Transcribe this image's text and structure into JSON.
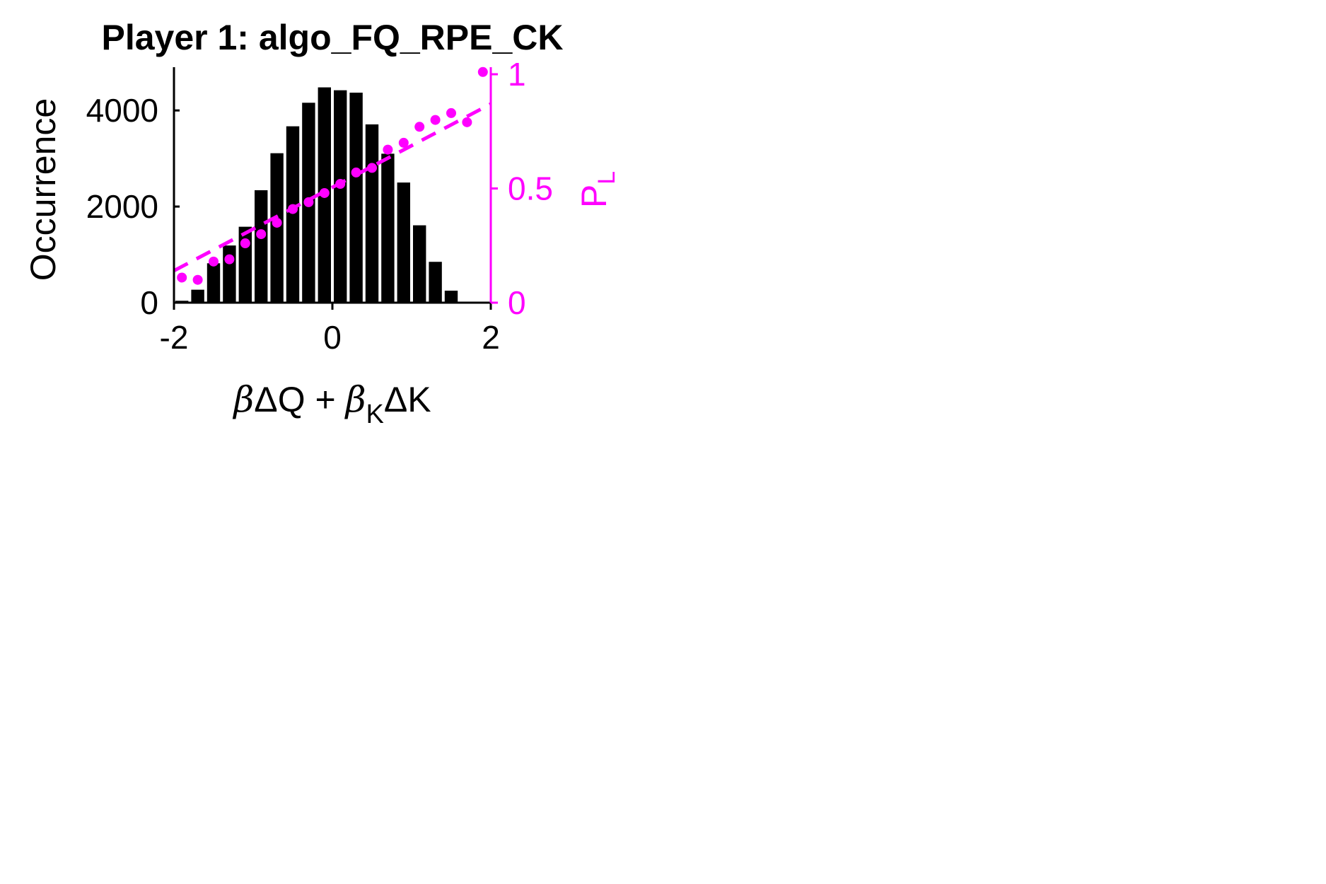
{
  "chart_data": {
    "type": "bar",
    "title": "Player 1: algo_FQ_RPE_CK",
    "xlabel": {
      "beta": "β",
      "part1": "ΔQ + ",
      "beta2": "β",
      "sub": "K",
      "part2": "ΔK"
    },
    "ylabel": "Occurrence",
    "y2label": {
      "main": "P",
      "sub": "L"
    },
    "xlim": [
      -2,
      2
    ],
    "ylim": [
      0,
      4900
    ],
    "y2lim": [
      0,
      1
    ],
    "xticks": [
      "-2",
      "0",
      "2"
    ],
    "yticks": [
      "0",
      "2000",
      "4000"
    ],
    "y2ticks": [
      "0",
      "0.5",
      "1"
    ],
    "grid": false,
    "histogram": {
      "name": "Occurrence",
      "bin_width": 0.2,
      "bin_centers": [
        -1.9,
        -1.7,
        -1.5,
        -1.3,
        -1.1,
        -0.9,
        -0.7,
        -0.5,
        -0.3,
        -0.1,
        0.1,
        0.3,
        0.5,
        0.7,
        0.9,
        1.1,
        1.3,
        1.5,
        1.7
      ],
      "values": [
        40,
        270,
        820,
        1190,
        1580,
        2340,
        3110,
        3670,
        4160,
        4480,
        4420,
        4370,
        3710,
        3100,
        2500,
        1610,
        850,
        250,
        20
      ]
    },
    "probability_points": {
      "name": "P_L",
      "x": [
        -1.9,
        -1.7,
        -1.5,
        -1.3,
        -1.1,
        -0.9,
        -0.7,
        -0.5,
        -0.3,
        -0.1,
        0.1,
        0.3,
        0.5,
        0.7,
        0.9,
        1.1,
        1.3,
        1.5,
        1.7,
        1.9
      ],
      "y": [
        0.11,
        0.1,
        0.18,
        0.19,
        0.26,
        0.3,
        0.35,
        0.41,
        0.44,
        0.48,
        0.52,
        0.57,
        0.59,
        0.67,
        0.7,
        0.77,
        0.8,
        0.83,
        0.79,
        1.01
      ]
    },
    "fit_line": {
      "name": "logistic fit",
      "style": "dashed",
      "x": [
        -2,
        2
      ],
      "y": [
        0.14,
        0.87
      ]
    },
    "colors": {
      "bars": "#000000",
      "right_axis": "#ff00ff",
      "fit": "#ff00ff",
      "points": "#ff00ff"
    }
  }
}
